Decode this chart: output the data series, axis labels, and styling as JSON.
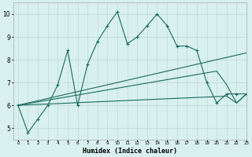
{
  "line1_x": [
    0,
    1,
    2,
    3,
    4,
    5,
    6,
    7,
    8,
    9,
    10,
    11,
    12,
    13,
    14,
    15,
    16,
    17,
    18,
    19,
    20,
    21,
    22,
    23
  ],
  "line1_y": [
    6.0,
    4.8,
    5.4,
    6.0,
    6.9,
    8.4,
    6.0,
    7.8,
    8.8,
    9.5,
    10.1,
    8.7,
    9.0,
    9.5,
    10.0,
    9.5,
    8.6,
    8.6,
    8.4,
    7.0,
    6.1,
    6.5,
    6.5,
    6.5
  ],
  "line2_x": [
    0,
    23
  ],
  "line2_y": [
    6.0,
    8.3
  ],
  "line3_x": [
    0,
    20,
    21,
    22,
    23
  ],
  "line3_y": [
    6.0,
    7.5,
    6.9,
    6.1,
    6.5
  ],
  "line4_x": [
    0,
    21,
    22,
    23
  ],
  "line4_y": [
    6.0,
    6.4,
    6.1,
    6.5
  ],
  "line_color": "#1a6b5e",
  "bg_color": "#d8f0ee",
  "grid_color": "#c0d8d8",
  "xlabel": "Humidex (Indice chaleur)",
  "xlim": [
    -0.5,
    23
  ],
  "ylim": [
    4.5,
    10.5
  ],
  "yticks": [
    5,
    6,
    7,
    8,
    9,
    10
  ],
  "xticks": [
    0,
    1,
    2,
    3,
    4,
    5,
    6,
    7,
    8,
    9,
    10,
    11,
    12,
    13,
    14,
    15,
    16,
    17,
    18,
    19,
    20,
    21,
    22,
    23
  ]
}
